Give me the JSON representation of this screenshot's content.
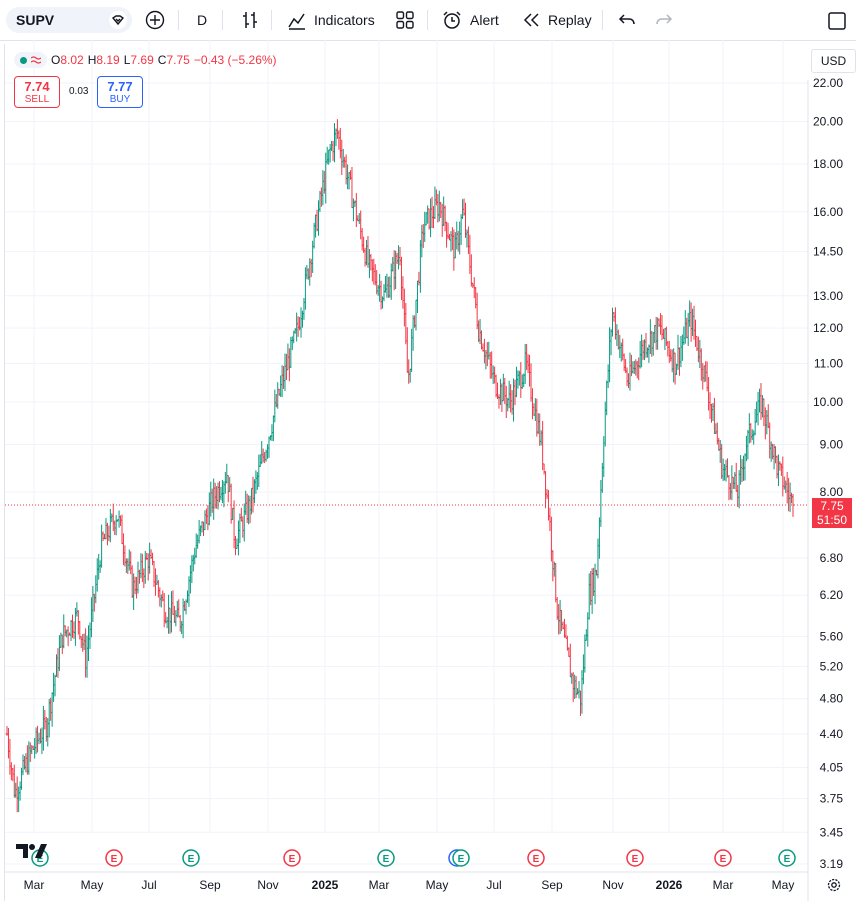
{
  "toolbar": {
    "symbol": "SUPV",
    "interval": "D",
    "indicators_label": "Indicators",
    "alert_label": "Alert",
    "replay_label": "Replay"
  },
  "legend": {
    "o_label": "O",
    "o": "8.02",
    "h_label": "H",
    "h": "8.19",
    "l_label": "L",
    "l": "7.69",
    "c_label": "C",
    "c": "7.75",
    "change": "−0.43 (−5.26%)"
  },
  "trade": {
    "sell_price": "7.74",
    "sell_label": "SELL",
    "spread": "0.03",
    "buy_price": "7.77",
    "buy_label": "BUY"
  },
  "currency": "USD",
  "last_price": {
    "value": "7.75",
    "countdown": "51:50"
  },
  "colors": {
    "up": "#089981",
    "down": "#f23645",
    "accent": "#2962ff"
  },
  "chart_data": {
    "type": "candlestick-bars",
    "y_scale": "log",
    "y_ticks": [
      "22.00",
      "20.00",
      "18.00",
      "16.00",
      "14.50",
      "13.00",
      "12.00",
      "11.00",
      "10.00",
      "9.00",
      "8.00",
      "6.80",
      "6.20",
      "5.60",
      "5.20",
      "4.80",
      "4.40",
      "4.05",
      "3.75",
      "3.45",
      "3.19"
    ],
    "x_ticks": [
      "Mar",
      "May",
      "Jul",
      "Sep",
      "Nov",
      "2025",
      "Mar",
      "May",
      "Jul",
      "Sep",
      "Nov",
      "2026",
      "Mar",
      "May"
    ],
    "last_value": 7.75,
    "series": [
      {
        "t": 0.0,
        "v": 4.4
      },
      {
        "t": 0.01,
        "v": 3.8
      },
      {
        "t": 0.03,
        "v": 4.2
      },
      {
        "t": 0.05,
        "v": 4.5
      },
      {
        "t": 0.07,
        "v": 5.6
      },
      {
        "t": 0.09,
        "v": 5.9
      },
      {
        "t": 0.1,
        "v": 5.3
      },
      {
        "t": 0.12,
        "v": 7.0
      },
      {
        "t": 0.14,
        "v": 7.6
      },
      {
        "t": 0.16,
        "v": 6.3
      },
      {
        "t": 0.18,
        "v": 6.8
      },
      {
        "t": 0.2,
        "v": 6.0
      },
      {
        "t": 0.22,
        "v": 5.8
      },
      {
        "t": 0.24,
        "v": 7.0
      },
      {
        "t": 0.26,
        "v": 7.8
      },
      {
        "t": 0.28,
        "v": 8.4
      },
      {
        "t": 0.29,
        "v": 7.1
      },
      {
        "t": 0.31,
        "v": 7.8
      },
      {
        "t": 0.33,
        "v": 9.0
      },
      {
        "t": 0.35,
        "v": 10.5
      },
      {
        "t": 0.37,
        "v": 12.0
      },
      {
        "t": 0.39,
        "v": 15.0
      },
      {
        "t": 0.41,
        "v": 18.5
      },
      {
        "t": 0.42,
        "v": 19.5
      },
      {
        "t": 0.44,
        "v": 16.5
      },
      {
        "t": 0.46,
        "v": 14.0
      },
      {
        "t": 0.48,
        "v": 13.0
      },
      {
        "t": 0.5,
        "v": 14.5
      },
      {
        "t": 0.51,
        "v": 10.5
      },
      {
        "t": 0.53,
        "v": 15.5
      },
      {
        "t": 0.55,
        "v": 16.3
      },
      {
        "t": 0.57,
        "v": 14.5
      },
      {
        "t": 0.58,
        "v": 16.0
      },
      {
        "t": 0.6,
        "v": 12.0
      },
      {
        "t": 0.62,
        "v": 10.5
      },
      {
        "t": 0.64,
        "v": 10.0
      },
      {
        "t": 0.66,
        "v": 11.0
      },
      {
        "t": 0.68,
        "v": 9.0
      },
      {
        "t": 0.69,
        "v": 7.5
      },
      {
        "t": 0.7,
        "v": 6.0
      },
      {
        "t": 0.72,
        "v": 5.0
      },
      {
        "t": 0.73,
        "v": 4.8
      },
      {
        "t": 0.74,
        "v": 6.2
      },
      {
        "t": 0.75,
        "v": 6.6
      },
      {
        "t": 0.76,
        "v": 9.5
      },
      {
        "t": 0.77,
        "v": 12.5
      },
      {
        "t": 0.79,
        "v": 10.5
      },
      {
        "t": 0.81,
        "v": 11.5
      },
      {
        "t": 0.83,
        "v": 12.0
      },
      {
        "t": 0.85,
        "v": 11.0
      },
      {
        "t": 0.87,
        "v": 12.3
      },
      {
        "t": 0.89,
        "v": 10.5
      },
      {
        "t": 0.91,
        "v": 8.5
      },
      {
        "t": 0.93,
        "v": 8.0
      },
      {
        "t": 0.94,
        "v": 9.0
      },
      {
        "t": 0.96,
        "v": 10.0
      },
      {
        "t": 0.98,
        "v": 8.5
      },
      {
        "t": 1.0,
        "v": 7.75
      }
    ]
  }
}
